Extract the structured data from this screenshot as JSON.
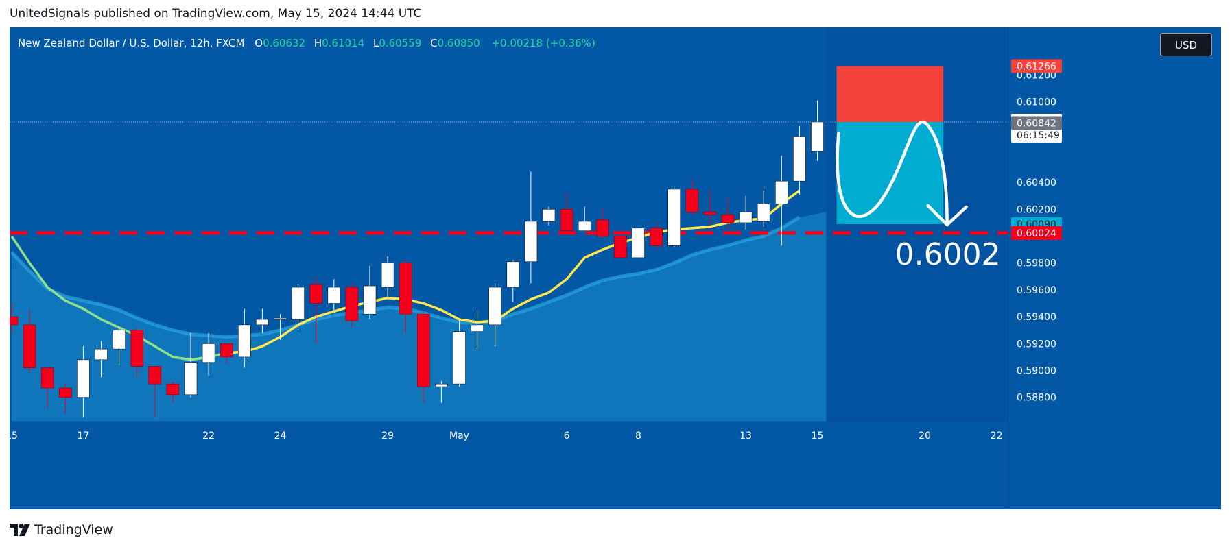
{
  "header": {
    "published": "UnitedSignals published on TradingView.com, May 15, 2024 14:44 UTC"
  },
  "legend": {
    "symbol": "New Zealand Dollar / U.S. Dollar, 12h, FXCM",
    "o_label": "O",
    "o_value": "0.60632",
    "h_label": "H",
    "h_value": "0.61014",
    "l_label": "L",
    "l_value": "0.60559",
    "c_label": "C",
    "c_value": "0.60850",
    "change": "+0.00218 (+0.36%)"
  },
  "currency_button": "USD",
  "footer": {
    "brand": "TradingView"
  },
  "colors": {
    "background": "#0258a4",
    "up_candle": "#ffffff",
    "down_candle": "#f4001d",
    "ma_fast": "#ffe94d",
    "ma_fast_early": "#8fe08a",
    "area_fill": "#1e8fd0",
    "stop_zone": "#f4433c",
    "target_zone": "#00acd0",
    "support_line": "#f4001d"
  },
  "chart_data": {
    "type": "candlestick",
    "symbol": "NZDUSD",
    "timeframe": "12h",
    "ylim": [
      0.5862,
      0.6136
    ],
    "y_ticks": [
      "0.61200",
      "0.61000",
      "0.60400",
      "0.60200",
      "0.59800",
      "0.59600",
      "0.59400",
      "0.59200",
      "0.59000",
      "0.58800"
    ],
    "x_ticks": [
      {
        "label": "15",
        "index": 0
      },
      {
        "label": "17",
        "index": 4
      },
      {
        "label": "22",
        "index": 11
      },
      {
        "label": "24",
        "index": 15
      },
      {
        "label": "29",
        "index": 21
      },
      {
        "label": "May",
        "index": 25
      },
      {
        "label": "6",
        "index": 31
      },
      {
        "label": "8",
        "index": 35
      },
      {
        "label": "13",
        "index": 41
      },
      {
        "label": "15",
        "index": 45
      },
      {
        "label": "20",
        "index": 51
      },
      {
        "label": "22",
        "index": 55
      }
    ],
    "candles": [
      [
        0.594,
        0.595,
        0.5928,
        0.5934
      ],
      [
        0.5934,
        0.5945,
        0.5898,
        0.5902
      ],
      [
        0.5902,
        0.5902,
        0.5872,
        0.5887
      ],
      [
        0.5887,
        0.589,
        0.5868,
        0.588
      ],
      [
        0.588,
        0.5918,
        0.5865,
        0.5908
      ],
      [
        0.5908,
        0.5922,
        0.5895,
        0.5916
      ],
      [
        0.5916,
        0.5933,
        0.5904,
        0.593
      ],
      [
        0.593,
        0.5932,
        0.5895,
        0.5903
      ],
      [
        0.5903,
        0.5903,
        0.5865,
        0.589
      ],
      [
        0.589,
        0.5892,
        0.5876,
        0.5882
      ],
      [
        0.5882,
        0.5928,
        0.588,
        0.5906
      ],
      [
        0.5906,
        0.5928,
        0.5896,
        0.592
      ],
      [
        0.592,
        0.592,
        0.5905,
        0.591
      ],
      [
        0.591,
        0.5946,
        0.5902,
        0.5934
      ],
      [
        0.5934,
        0.5946,
        0.5928,
        0.5938
      ],
      [
        0.5938,
        0.5942,
        0.5923,
        0.5939
      ],
      [
        0.5938,
        0.5964,
        0.593,
        0.5962
      ],
      [
        0.5964,
        0.597,
        0.592,
        0.595
      ],
      [
        0.595,
        0.5968,
        0.5945,
        0.5962
      ],
      [
        0.5962,
        0.5965,
        0.5932,
        0.5937
      ],
      [
        0.5942,
        0.5978,
        0.5938,
        0.5963
      ],
      [
        0.5962,
        0.5985,
        0.5955,
        0.598
      ],
      [
        0.598,
        0.5982,
        0.5928,
        0.5942
      ],
      [
        0.5942,
        0.5944,
        0.5876,
        0.5888
      ],
      [
        0.5888,
        0.5892,
        0.5876,
        0.589
      ],
      [
        0.589,
        0.5937,
        0.5888,
        0.5929
      ],
      [
        0.5929,
        0.5945,
        0.5916,
        0.5934
      ],
      [
        0.5934,
        0.5965,
        0.5918,
        0.5962
      ],
      [
        0.5962,
        0.5982,
        0.5951,
        0.5981
      ],
      [
        0.5981,
        0.6048,
        0.5965,
        0.6011
      ],
      [
        0.6011,
        0.6022,
        0.6008,
        0.602
      ],
      [
        0.602,
        0.6032,
        0.6005,
        0.6004
      ],
      [
        0.6004,
        0.6022,
        0.6004,
        0.6011
      ],
      [
        0.6012,
        0.602,
        0.5998,
        0.6
      ],
      [
        0.6,
        0.6005,
        0.5985,
        0.5984
      ],
      [
        0.5984,
        0.6006,
        0.5984,
        0.6006
      ],
      [
        0.6006,
        0.601,
        0.599,
        0.5993
      ],
      [
        0.5993,
        0.6037,
        0.5992,
        0.6035
      ],
      [
        0.6035,
        0.6042,
        0.6016,
        0.6018
      ],
      [
        0.6018,
        0.6035,
        0.6008,
        0.6016
      ],
      [
        0.6016,
        0.6028,
        0.6006,
        0.601
      ],
      [
        0.601,
        0.603,
        0.6005,
        0.6018
      ],
      [
        0.6011,
        0.6034,
        0.6007,
        0.6024
      ],
      [
        0.6024,
        0.606,
        0.5993,
        0.6041
      ],
      [
        0.6041,
        0.6082,
        0.6031,
        0.6074
      ],
      [
        0.6063,
        0.6101,
        0.6056,
        0.6085
      ]
    ],
    "ma_fast": [
      0.6,
      0.598,
      0.5962,
      0.5952,
      0.5946,
      0.5938,
      0.5932,
      0.5926,
      0.5918,
      0.591,
      0.5908,
      0.591,
      0.5913,
      0.5914,
      0.5918,
      0.5925,
      0.5934,
      0.594,
      0.5944,
      0.5948,
      0.5951,
      0.5954,
      0.5953,
      0.595,
      0.5945,
      0.5938,
      0.5936,
      0.5937,
      0.5946,
      0.5953,
      0.5958,
      0.5968,
      0.5984,
      0.599,
      0.5995,
      0.5999,
      0.6003,
      0.6005,
      0.6006,
      0.6007,
      0.601,
      0.6012,
      0.6013,
      0.6024,
      0.6034
    ],
    "area_series": [
      0.5988,
      0.5974,
      0.5961,
      0.5955,
      0.5952,
      0.5949,
      0.5945,
      0.5939,
      0.5934,
      0.593,
      0.5927,
      0.5926,
      0.5925,
      0.5926,
      0.5927,
      0.593,
      0.5934,
      0.5938,
      0.5941,
      0.5943,
      0.5945,
      0.5947,
      0.5946,
      0.5943,
      0.5939,
      0.5936,
      0.5935,
      0.5937,
      0.5942,
      0.5946,
      0.5951,
      0.5956,
      0.5962,
      0.5967,
      0.597,
      0.5972,
      0.5975,
      0.598,
      0.5986,
      0.599,
      0.5993,
      0.5997,
      0.6,
      0.6006,
      0.6014
    ],
    "position": {
      "entry": 0.6085,
      "stop": 0.61266,
      "target": 0.6009,
      "start_index": 46,
      "end_index": 52
    },
    "support_level": 0.60024,
    "price_tags": [
      {
        "value": 0.61266,
        "label": "0.61266",
        "bg": "#f4433c",
        "fg": "#ffffff"
      },
      {
        "value": 0.6085,
        "label": "0.60850",
        "sub": "06:15:49",
        "bg": "#ffffff",
        "fg": "#131722"
      },
      {
        "value": 0.60842,
        "label": "0.60842",
        "bg": "#6d7480",
        "fg": "#ffffff"
      },
      {
        "value": 0.6009,
        "label": "0.60090",
        "bg": "#00acd0",
        "fg": "#131722"
      },
      {
        "value": 0.60024,
        "label": "0.60024",
        "bg": "#f4001d",
        "fg": "#ffffff"
      }
    ],
    "annotation": "0.6002",
    "last_price_line": 0.6085
  }
}
